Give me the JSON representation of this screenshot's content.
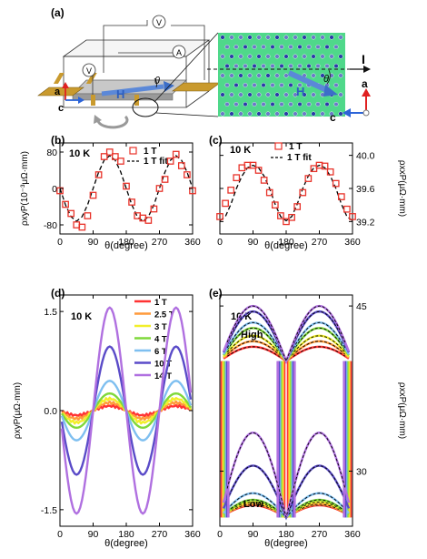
{
  "figure": {
    "panel_a": {
      "label": "(a)",
      "meter_v": "V",
      "meter_a": "A",
      "field": "H",
      "angle": "θ",
      "axis_a": "a",
      "axis_c": "c",
      "current": "I",
      "inset_field": "H",
      "inset_angle": "θ",
      "inset_axis_a": "a",
      "inset_axis_c": "c"
    },
    "panel_b": {
      "label": "(b)",
      "temp": "10 K",
      "legend_data": "1 T",
      "legend_fit": "1 T fit"
    },
    "panel_c": {
      "label": "(c)",
      "temp": "10 K",
      "legend_data": "1 T",
      "legend_fit": "1 T fit"
    },
    "panel_d": {
      "label": "(d)",
      "temp": "10 K"
    },
    "panel_e": {
      "label": "(e)",
      "temp": "10 K",
      "high": "High",
      "low": "Low"
    },
    "colors": {
      "1 T": "#ff3333",
      "2.5 T": "#ff9a3c",
      "3 T": "#f2ef2a",
      "4 T": "#7fd83a",
      "6 T": "#7ebff0",
      "10 T": "#5a4bc8",
      "14 T": "#b070e0",
      "data": "#e8332a",
      "fit": "#000000"
    }
  },
  "chart_data": [
    {
      "type": "scatter",
      "panel": "b",
      "xlabel": "θ(degree)",
      "ylabel": "ρxyP(10⁻³μΩ·mm)",
      "xlim": [
        0,
        360
      ],
      "ylim": [
        -100,
        100
      ],
      "xticks": [
        "0",
        "90",
        "180",
        "270",
        "360"
      ],
      "yticks": [
        "80",
        "0",
        "-80"
      ],
      "series": [
        {
          "name": "1 T",
          "x": [
            0,
            15,
            30,
            45,
            60,
            75,
            90,
            105,
            120,
            135,
            150,
            165,
            180,
            195,
            210,
            225,
            240,
            255,
            270,
            285,
            300,
            315,
            330,
            345,
            360
          ],
          "y": [
            -5,
            -35,
            -55,
            -80,
            -85,
            -60,
            -15,
            30,
            70,
            80,
            70,
            60,
            5,
            -30,
            -60,
            -65,
            -70,
            -45,
            0,
            20,
            60,
            75,
            50,
            30,
            -5
          ]
        },
        {
          "name": "1 T fit",
          "x": [
            0,
            15,
            30,
            45,
            60,
            75,
            90,
            105,
            120,
            135,
            150,
            165,
            180,
            195,
            210,
            225,
            240,
            255,
            270,
            285,
            300,
            315,
            330,
            345,
            360
          ],
          "y": [
            0,
            -36,
            -62,
            -72,
            -62,
            -36,
            0,
            36,
            62,
            72,
            62,
            36,
            0,
            -36,
            -62,
            -72,
            -62,
            -36,
            0,
            36,
            62,
            72,
            62,
            36,
            0
          ]
        }
      ]
    },
    {
      "type": "scatter",
      "panel": "c",
      "xlabel": "θ(degree)",
      "ylabel": "ρxxP(μΩ·mm)",
      "xlim": [
        0,
        360
      ],
      "ylim": [
        39.05,
        40.15
      ],
      "xticks": [
        "0",
        "90",
        "180",
        "270",
        "360"
      ],
      "yticks": [
        "40.0",
        "39.6",
        "39.2"
      ],
      "series": [
        {
          "name": "1 T",
          "x": [
            0,
            15,
            30,
            45,
            60,
            75,
            90,
            105,
            120,
            135,
            150,
            165,
            180,
            195,
            210,
            225,
            240,
            255,
            270,
            285,
            300,
            315,
            330,
            345,
            360
          ],
          "y": [
            39.26,
            39.42,
            39.58,
            39.73,
            39.85,
            39.88,
            39.88,
            39.82,
            39.7,
            39.55,
            39.4,
            39.27,
            39.2,
            39.25,
            39.38,
            39.55,
            39.72,
            39.84,
            39.88,
            39.87,
            39.8,
            39.66,
            39.5,
            39.35,
            39.26
          ]
        },
        {
          "name": "1 T fit",
          "x": [
            0,
            15,
            30,
            45,
            60,
            75,
            90,
            105,
            120,
            135,
            150,
            165,
            180,
            195,
            210,
            225,
            240,
            255,
            270,
            285,
            300,
            315,
            330,
            345,
            360
          ],
          "y": [
            39.21,
            39.26,
            39.41,
            39.6,
            39.75,
            39.85,
            39.88,
            39.85,
            39.75,
            39.6,
            39.41,
            39.26,
            39.21,
            39.26,
            39.41,
            39.6,
            39.75,
            39.85,
            39.88,
            39.85,
            39.75,
            39.6,
            39.41,
            39.26,
            39.21
          ]
        }
      ]
    },
    {
      "type": "line",
      "panel": "d",
      "xlabel": "θ(degree)",
      "ylabel": "ρxyP(μΩ·mm)",
      "xlim": [
        0,
        360
      ],
      "ylim": [
        -1.75,
        1.75
      ],
      "xticks": [
        "0",
        "90",
        "180",
        "270",
        "360"
      ],
      "yticks": [
        "1.5",
        "0.0",
        "-1.5"
      ],
      "legend": "top-right",
      "series": [
        {
          "name": "1 T",
          "amplitude": 0.07
        },
        {
          "name": "2.5 T",
          "amplitude": 0.12
        },
        {
          "name": "3 T",
          "amplitude": 0.18
        },
        {
          "name": "4 T",
          "amplitude": 0.26
        },
        {
          "name": "6 T",
          "amplitude": 0.45
        },
        {
          "name": "10 T",
          "amplitude": 0.97
        },
        {
          "name": "14 T",
          "amplitude": 1.56
        }
      ],
      "shape": "y = -A·sin(2θ)"
    },
    {
      "type": "line",
      "panel": "e",
      "xlabel": "θ(degree)",
      "ylabel": "ρxxP(μΩ·mm)",
      "xlim": [
        0,
        360
      ],
      "ylim": [
        25,
        46
      ],
      "xticks": [
        "0",
        "90",
        "180",
        "270",
        "360"
      ],
      "yticks": [
        "45",
        "30"
      ],
      "series": [
        {
          "name": "1 T",
          "high_peak": 41.3,
          "low_peak": 26.9
        },
        {
          "name": "2.5 T",
          "high_peak": 41.8,
          "low_peak": 27.0
        },
        {
          "name": "3 T",
          "high_peak": 42.3,
          "low_peak": 27.2
        },
        {
          "name": "4 T",
          "high_peak": 43.0,
          "low_peak": 27.4
        },
        {
          "name": "6 T",
          "high_peak": 43.5,
          "low_peak": 28.0
        },
        {
          "name": "10 T",
          "high_peak": 44.5,
          "low_peak": 30.5
        },
        {
          "name": "14 T",
          "high_peak": 45.0,
          "low_peak": 33.5
        }
      ],
      "baseline_high": 40.0,
      "baseline_low": 25.8
    }
  ]
}
